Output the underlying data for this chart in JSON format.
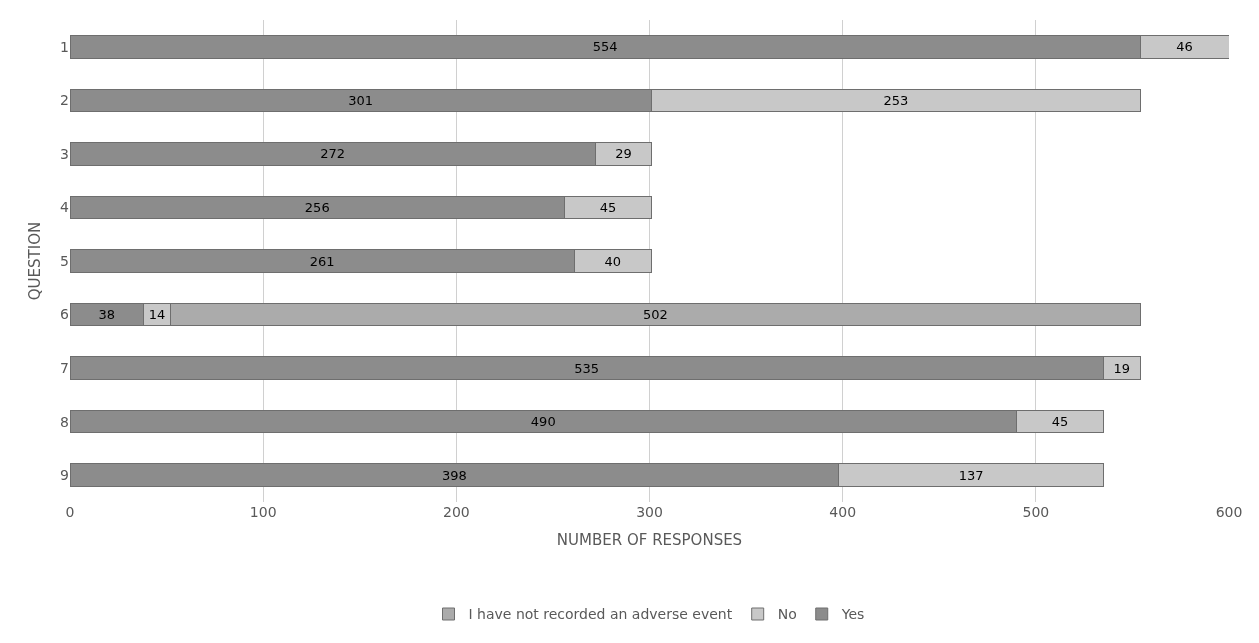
{
  "chart_data": {
    "type": "bar",
    "orientation": "horizontal",
    "stacked": true,
    "xlabel": "NUMBER OF RESPONSES",
    "ylabel": "QUESTION",
    "categories": [
      "1",
      "2",
      "3",
      "4",
      "5",
      "6",
      "7",
      "8",
      "9"
    ],
    "series": [
      {
        "name": "Yes",
        "color": "#8c8c8c",
        "values": [
          554,
          301,
          272,
          256,
          261,
          38,
          535,
          490,
          398
        ]
      },
      {
        "name": "No",
        "color": "#c8c8c8",
        "values": [
          46,
          253,
          29,
          45,
          40,
          14,
          19,
          45,
          137
        ]
      },
      {
        "name": "I have not recorded an adverse event",
        "color": "#ababab",
        "values": [
          null,
          null,
          null,
          null,
          null,
          502,
          null,
          null,
          null
        ]
      }
    ],
    "xlim": [
      0,
      600
    ],
    "xticks": [
      0,
      100,
      200,
      300,
      400,
      500,
      600
    ],
    "grid": "x",
    "legend": "bottom",
    "data_labels": true
  }
}
